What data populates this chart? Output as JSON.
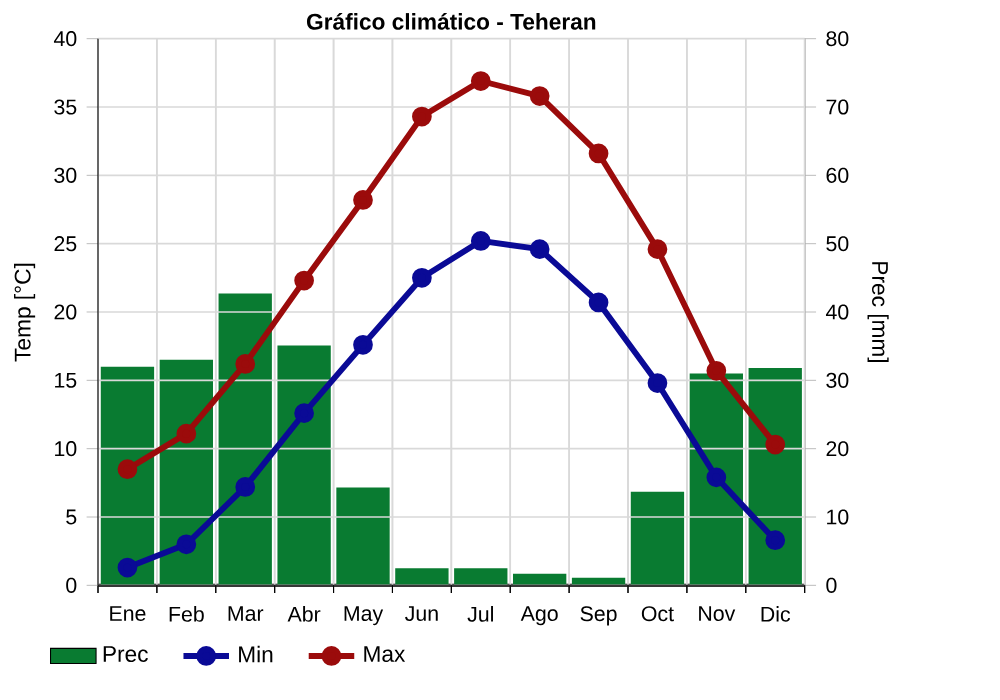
{
  "chart_data": {
    "type": "line",
    "title": "Gráfico climático - Teheran",
    "ylabel": "Temp [°C]",
    "y2label": "Prec [mm]",
    "categories": [
      "Ene",
      "Feb",
      "Mar",
      "Abr",
      "May",
      "Jun",
      "Jul",
      "Ago",
      "Sep",
      "Oct",
      "Nov",
      "Dic"
    ],
    "series": [
      {
        "name": "Prec",
        "type": "bar",
        "axis": "y2",
        "color": "#097b31",
        "values": [
          32,
          33,
          42.7,
          35.1,
          14.3,
          2.5,
          2.5,
          1.7,
          1.1,
          13.7,
          31,
          31.8
        ]
      },
      {
        "name": "Min",
        "color": "#0a0a96",
        "values": [
          1.3,
          3.0,
          7.2,
          12.6,
          17.6,
          22.5,
          25.2,
          24.6,
          20.7,
          14.8,
          7.9,
          3.3
        ]
      },
      {
        "name": "Max",
        "color": "#9b0b0b",
        "values": [
          8.5,
          11.1,
          16.2,
          22.3,
          28.2,
          34.3,
          36.9,
          35.8,
          31.6,
          24.6,
          15.7,
          10.3
        ]
      }
    ],
    "ylim": [
      0,
      40
    ],
    "yticks": [
      0,
      5,
      10,
      15,
      20,
      25,
      30,
      35,
      40
    ],
    "y2lim": [
      0,
      80
    ],
    "y2ticks": [
      0,
      10,
      20,
      30,
      40,
      50,
      60,
      70,
      80
    ],
    "grid": true,
    "legend": "bottom",
    "marker": "circle"
  }
}
